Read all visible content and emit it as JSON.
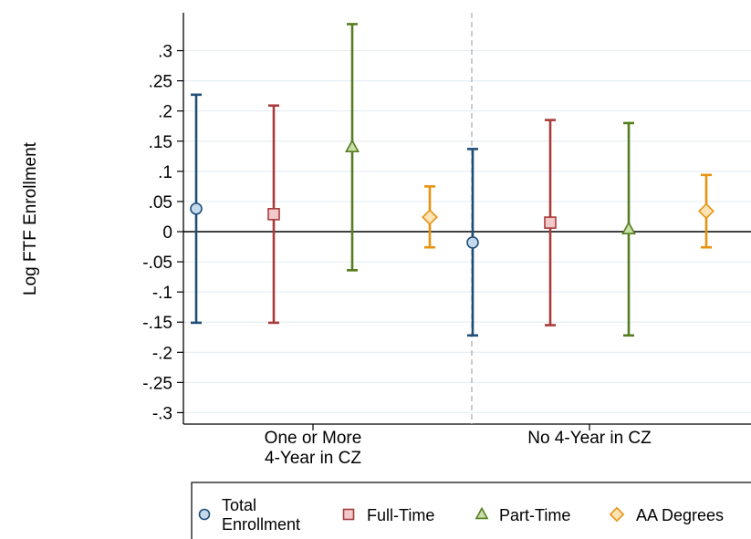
{
  "chart_data": {
    "type": "scatter",
    "subtype": "point-estimate-with-confidence-intervals",
    "ylabel": "Log FTF Enrollment",
    "xlabel": "",
    "ylim": [
      -0.32,
      0.36
    ],
    "yticks": [
      {
        "value": 0.3,
        "label": ".3"
      },
      {
        "value": 0.25,
        "label": ".25"
      },
      {
        "value": 0.2,
        "label": ".2"
      },
      {
        "value": 0.15,
        "label": ".15"
      },
      {
        "value": 0.1,
        "label": ".1"
      },
      {
        "value": 0.05,
        "label": ".05"
      },
      {
        "value": 0,
        "label": "0"
      },
      {
        "value": -0.05,
        "label": "-.05"
      },
      {
        "value": -0.1,
        "label": "-.1"
      },
      {
        "value": -0.15,
        "label": "-.15"
      },
      {
        "value": -0.2,
        "label": "-.2"
      },
      {
        "value": -0.25,
        "label": "-.25"
      },
      {
        "value": -0.3,
        "label": "-.3"
      }
    ],
    "grid": true,
    "reference_line_y": 0,
    "groups": [
      {
        "label_lines": [
          "One or More",
          "4-Year in CZ"
        ]
      },
      {
        "label_lines": [
          "No 4-Year in CZ"
        ]
      }
    ],
    "series": [
      {
        "name_lines": [
          "Total",
          "Enrollment"
        ],
        "marker": "circle",
        "color": "#1f4e79",
        "fill": "#c5d9ec",
        "points": [
          {
            "group": 0,
            "estimate": 0.038,
            "lower": -0.151,
            "upper": 0.227
          },
          {
            "group": 1,
            "estimate": -0.018,
            "lower": -0.172,
            "upper": 0.137
          }
        ]
      },
      {
        "name_lines": [
          "Full-Time"
        ],
        "marker": "square",
        "color": "#a83b3b",
        "fill": "#f1c9cb",
        "points": [
          {
            "group": 0,
            "estimate": 0.029,
            "lower": -0.151,
            "upper": 0.209
          },
          {
            "group": 1,
            "estimate": 0.015,
            "lower": -0.155,
            "upper": 0.185
          }
        ]
      },
      {
        "name_lines": [
          "Part-Time"
        ],
        "marker": "triangle",
        "color": "#567d1f",
        "fill": "#c8dea7",
        "points": [
          {
            "group": 0,
            "estimate": 0.14,
            "lower": -0.064,
            "upper": 0.344
          },
          {
            "group": 1,
            "estimate": 0.004,
            "lower": -0.172,
            "upper": 0.18
          }
        ]
      },
      {
        "name_lines": [
          "AA Degrees"
        ],
        "marker": "diamond",
        "color": "#e8930f",
        "fill": "#fde3b6",
        "points": [
          {
            "group": 0,
            "estimate": 0.024,
            "lower": -0.026,
            "upper": 0.075
          },
          {
            "group": 1,
            "estimate": 0.034,
            "lower": -0.026,
            "upper": 0.094
          }
        ]
      }
    ],
    "legend_position": "bottom"
  }
}
